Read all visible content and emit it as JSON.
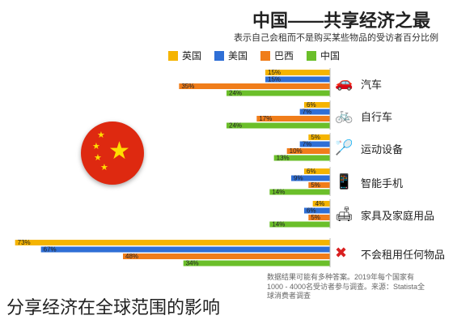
{
  "header": {
    "title": "中国——共享经济之最",
    "subtitle": "表示自己会租而不是购买某些物品的受访者百分比例"
  },
  "legend": [
    {
      "name": "英国",
      "color": "#f5b400"
    },
    {
      "name": "美国",
      "color": "#2f6fd6"
    },
    {
      "name": "巴西",
      "color": "#f07d1a"
    },
    {
      "name": "中国",
      "color": "#6bbf2a"
    }
  ],
  "icons": {
    "汽车": "car-icon",
    "自行车": "bicycle-icon",
    "运动设备": "sports-equipment-icon",
    "智能手机": "smartphone-icon",
    "家具及家庭用品": "sofa-icon",
    "不会租用任何物品": "cross-icon"
  },
  "chart_data": {
    "type": "bar",
    "orientation": "horizontal",
    "categories": [
      "汽车",
      "自行车",
      "运动设备",
      "智能手机",
      "家具及家庭用品",
      "不会租用任何物品"
    ],
    "series": [
      {
        "name": "英国",
        "color": "#f5b400",
        "values": [
          15,
          6,
          5,
          6,
          4,
          73
        ]
      },
      {
        "name": "美国",
        "color": "#2f6fd6",
        "values": [
          15,
          7,
          7,
          9,
          6,
          67
        ]
      },
      {
        "name": "巴西",
        "color": "#f07d1a",
        "values": [
          35,
          17,
          10,
          5,
          5,
          48
        ]
      },
      {
        "name": "中国",
        "color": "#6bbf2a",
        "values": [
          24,
          24,
          13,
          14,
          14,
          34
        ]
      }
    ],
    "xlim": [
      0,
      75
    ],
    "value_suffix": "%",
    "grid": false,
    "legend_position": "top"
  },
  "source": "数据结果可能有多种答案。2019年每个国家有1000 - 4000名受访者参与调查。来源：Statista全球消费者调查",
  "caption": "分享经济在全球范围的影响"
}
